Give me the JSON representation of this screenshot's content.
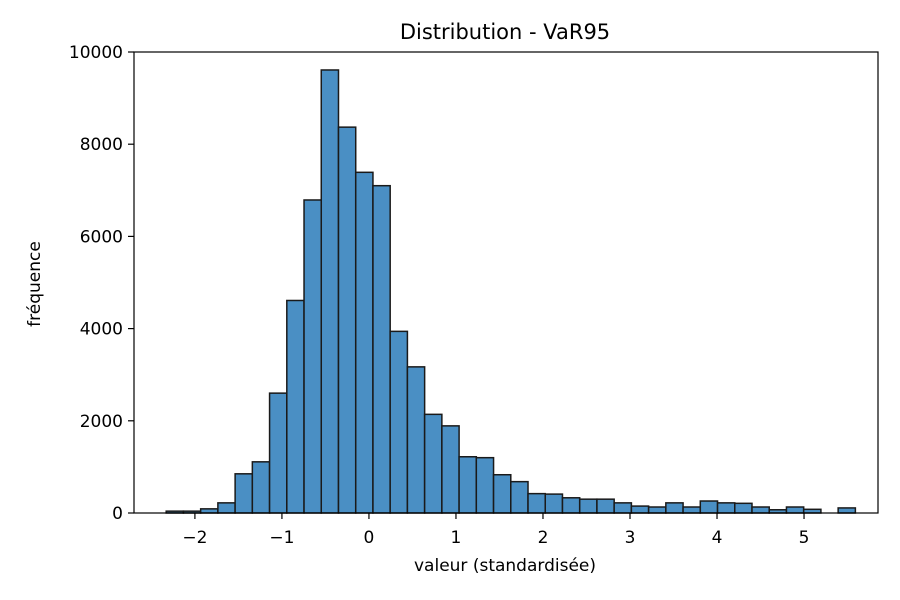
{
  "chart_data": {
    "type": "bar",
    "title": "Distribution - VaR95",
    "xlabel": "valeur (standardisée)",
    "ylabel": "fréquence",
    "xlim": [
      -2.7,
      5.85
    ],
    "ylim": [
      0,
      10000
    ],
    "grid": false,
    "legend": "none",
    "xticks": [
      -2,
      -1,
      0,
      1,
      2,
      3,
      4,
      5
    ],
    "xtick_labels": [
      "−2",
      "−1",
      "0",
      "1",
      "2",
      "3",
      "4",
      "5"
    ],
    "yticks": [
      0,
      2000,
      4000,
      6000,
      8000,
      10000
    ],
    "ytick_labels": [
      "0",
      "2000",
      "4000",
      "6000",
      "8000",
      "10000"
    ],
    "bar_color": "#4a8fc4",
    "edge_color": "#1a1a1a",
    "bin_start": -2.33,
    "bin_width": 0.198,
    "values": [
      40,
      40,
      90,
      220,
      850,
      1110,
      2600,
      4610,
      6790,
      9610,
      8370,
      7390,
      7100,
      3940,
      3170,
      2140,
      1890,
      1220,
      1200,
      830,
      680,
      420,
      410,
      330,
      300,
      300,
      220,
      150,
      130,
      220,
      130,
      260,
      220,
      210,
      130,
      70,
      130,
      80,
      0,
      110
    ]
  }
}
